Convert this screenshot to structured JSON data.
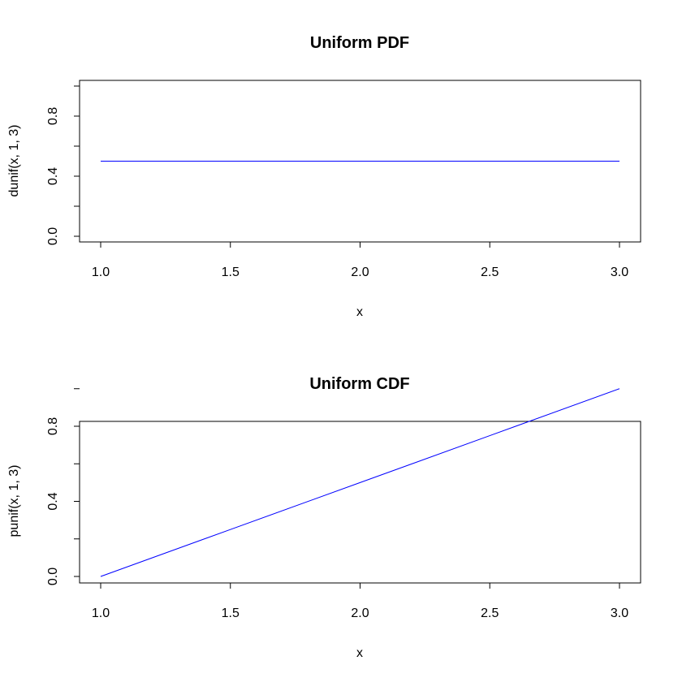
{
  "chart_data": [
    {
      "type": "line",
      "title": "Uniform PDF",
      "xlabel": "x",
      "ylabel": "dunif(x, 1, 3)",
      "xlim": [
        1.0,
        3.0
      ],
      "ylim": [
        0.0,
        1.0
      ],
      "x_ticks": [
        "1.0",
        "1.5",
        "2.0",
        "2.5",
        "3.0"
      ],
      "y_ticks": [
        "0.0",
        "0.4",
        "0.8"
      ],
      "y_minor_ticks": [
        0.0,
        0.2,
        0.4,
        0.6,
        0.8,
        1.0
      ],
      "grid": false,
      "line_color": "#0000ff",
      "series": [
        {
          "x": [
            1.0,
            3.0
          ],
          "values": [
            0.5,
            0.5
          ]
        }
      ]
    },
    {
      "type": "line",
      "title": "Uniform CDF",
      "xlabel": "x",
      "ylabel": "punif(x, 1, 3)",
      "xlim": [
        1.0,
        3.0
      ],
      "ylim": [
        0.0,
        1.0
      ],
      "x_ticks": [
        "1.0",
        "1.5",
        "2.0",
        "2.5",
        "3.0"
      ],
      "y_ticks": [
        "0.0",
        "0.4",
        "0.8"
      ],
      "y_minor_ticks": [
        0.0,
        0.2,
        0.4,
        0.6,
        0.8,
        1.0
      ],
      "grid": false,
      "line_color": "#0000ff",
      "series": [
        {
          "x": [
            1.0,
            1.5,
            2.0,
            2.5,
            3.0
          ],
          "values": [
            0.0,
            0.25,
            0.5,
            0.75,
            1.0
          ]
        }
      ]
    }
  ]
}
